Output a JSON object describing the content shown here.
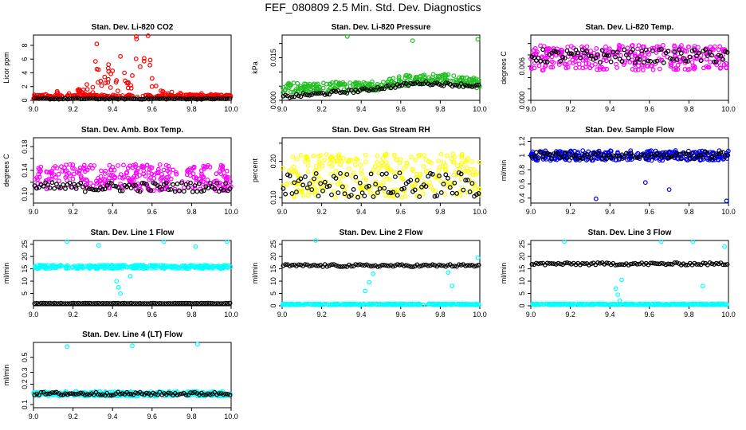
{
  "figure": {
    "title": "FEF_080809  2.5 Min. Std. Dev. Diagnostics",
    "colors": {
      "red": "#ff0000",
      "green": "#1fbf1f",
      "magenta": "#ff00ff",
      "yellow": "#ffff00",
      "blue": "#0000ff",
      "cyan": "#00ffff",
      "black": "#000000"
    }
  },
  "chart_data": [
    {
      "type": "scatter",
      "title": "Stan. Dev. Li-820 CO2",
      "ylabel": "Licor ppm",
      "xlim": [
        9.0,
        10.0
      ],
      "ylim": [
        0,
        9.5
      ],
      "xticks": [
        "9.0",
        "9.2",
        "9.4",
        "9.6",
        "9.8",
        "10.0"
      ],
      "yticks": [
        0,
        2,
        4,
        6,
        8
      ],
      "series": [
        {
          "name": "main",
          "color": "red",
          "base": 0.45,
          "spread": 0.35,
          "x": [
            9.03,
            9.12,
            9.18,
            9.23,
            9.27,
            9.3,
            9.32,
            9.34,
            9.36,
            9.38,
            9.4,
            9.42,
            9.44,
            9.46,
            9.48,
            9.5,
            9.52,
            9.54,
            9.56,
            9.58,
            9.6,
            9.62,
            9.7,
            9.85,
            9.95
          ],
          "y": [
            0.7,
            1.3,
            1.0,
            1.6,
            2.3,
            1.9,
            8.2,
            2.8,
            3.4,
            5.2,
            4.3,
            2.9,
            6.4,
            4.0,
            2.6,
            3.6,
            9.3,
            4.9,
            6.1,
            9.4,
            3.2,
            2.1,
            1.2,
            1.0,
            0.8
          ]
        },
        {
          "name": "ref",
          "color": "black",
          "y": [
            0.15,
            0.3
          ]
        }
      ]
    },
    {
      "type": "scatter",
      "title": "Stan. Dev. Li-820 Pressure",
      "ylabel": "kPa",
      "xlim": [
        9.0,
        10.0
      ],
      "ylim": [
        0,
        0.023
      ],
      "xticks": [
        "9.0",
        "9.2",
        "9.4",
        "9.6",
        "9.8",
        "10.0"
      ],
      "yticks": [
        0.0,
        0.005,
        0.01,
        0.015,
        0.02
      ],
      "ytick_labels": [
        "0.000",
        "",
        "",
        "0.015",
        ""
      ],
      "series": [
        {
          "name": "main",
          "color": "green",
          "x": [
            9.0,
            9.2,
            9.4,
            9.5,
            9.6,
            9.7,
            9.8,
            9.9,
            10.0
          ],
          "y": [
            0.0045,
            0.0045,
            0.0048,
            0.0055,
            0.0068,
            0.0078,
            0.0075,
            0.007,
            0.006
          ],
          "spread": 0.0018,
          "outliers_x": [
            9.33,
            9.66,
            9.99
          ],
          "outliers_y": [
            0.0225,
            0.021,
            0.0215
          ]
        },
        {
          "name": "ref",
          "color": "black",
          "x": [
            9.0,
            9.4,
            9.7,
            10.0
          ],
          "y": [
            0.0012,
            0.0035,
            0.0062,
            0.005
          ]
        }
      ]
    },
    {
      "type": "scatter",
      "title": "Stan. Dev. Li-820 Temp.",
      "ylabel": "degrees C",
      "xlim": [
        9.0,
        10.0
      ],
      "ylim": [
        0,
        0.0115
      ],
      "xticks": [
        "9.0",
        "9.2",
        "9.4",
        "9.6",
        "9.8",
        "10.0"
      ],
      "yticks": [
        0.0,
        0.002,
        0.004,
        0.006,
        0.008,
        0.01
      ],
      "ytick_labels": [
        "0.000",
        "",
        "",
        "0.006",
        "",
        ""
      ],
      "series": [
        {
          "name": "main",
          "color": "magenta",
          "base": 0.0075,
          "spread": 0.0022
        },
        {
          "name": "ref",
          "color": "black",
          "base": 0.0078,
          "spread": 0.0012
        }
      ]
    },
    {
      "type": "scatter",
      "title": "Stan. Dev. Amb. Box Temp.",
      "ylabel": "degrees C",
      "xlim": [
        9.0,
        10.0
      ],
      "ylim": [
        0.085,
        0.195
      ],
      "xticks": [
        "9.0",
        "9.2",
        "9.4",
        "9.6",
        "9.8",
        "10.0"
      ],
      "yticks": [
        0.1,
        0.12,
        0.14,
        0.16,
        0.18
      ],
      "ytick_labels": [
        "0.10",
        "",
        "0.14",
        "",
        "0.18"
      ],
      "series": [
        {
          "name": "main",
          "color": "magenta",
          "base": 0.128,
          "spread": 0.022
        },
        {
          "name": "ref",
          "color": "black",
          "base": 0.112,
          "spread": 0.008
        }
      ]
    },
    {
      "type": "scatter",
      "title": "Stan. Dev. Gas Stream RH",
      "ylabel": "percent",
      "xlim": [
        9.0,
        10.0
      ],
      "ylim": [
        0.085,
        0.265
      ],
      "xticks": [
        "9.0",
        "9.2",
        "9.4",
        "9.6",
        "9.8",
        "10.0"
      ],
      "yticks": [
        0.1,
        0.15,
        0.2,
        0.25
      ],
      "ytick_labels": [
        "0.10",
        "",
        "0.20",
        ""
      ],
      "series": [
        {
          "name": "main",
          "color": "yellow",
          "base": 0.16,
          "spread": 0.06
        },
        {
          "name": "ref",
          "color": "black",
          "base": 0.135,
          "spread": 0.035
        }
      ]
    },
    {
      "type": "scatter",
      "title": "Stan. Dev. Sample Flow",
      "ylabel": "ml/min",
      "xlim": [
        9.0,
        10.0
      ],
      "ylim": [
        0.33,
        1.25
      ],
      "xticks": [
        "9.0",
        "9.2",
        "9.4",
        "9.6",
        "9.8",
        "10.0"
      ],
      "yticks": [
        0.4,
        0.6,
        0.8,
        1.0,
        1.2
      ],
      "series": [
        {
          "name": "main",
          "color": "blue",
          "base": 1.0,
          "spread": 0.07,
          "outliers_x": [
            9.33,
            9.7,
            9.99,
            9.58
          ],
          "outliers_y": [
            0.39,
            0.52,
            0.36,
            0.62
          ]
        },
        {
          "name": "ref",
          "color": "black",
          "base": 1.0,
          "spread": 0.05
        }
      ]
    },
    {
      "type": "scatter",
      "title": "Stan. Dev. Line 1 Flow",
      "ylabel": "ml/min",
      "xlim": [
        9.0,
        10.0
      ],
      "ylim": [
        0,
        26.5
      ],
      "xticks": [
        "9.0",
        "9.2",
        "9.4",
        "9.6",
        "9.8",
        "10.0"
      ],
      "yticks": [
        5,
        10,
        15,
        20,
        25
      ],
      "series": [
        {
          "name": "main",
          "color": "cyan",
          "base": 15.8,
          "spread": 0.7,
          "outliers_x": [
            9.17,
            9.33,
            9.42,
            9.43,
            9.44,
            9.49,
            9.66,
            9.82,
            9.98
          ],
          "outliers_y": [
            26.0,
            24.5,
            10.0,
            7.5,
            5.0,
            12.0,
            26.0,
            24.0,
            26.0
          ]
        },
        {
          "name": "ref",
          "color": "black",
          "base": 1.0,
          "spread": 0.1
        }
      ]
    },
    {
      "type": "scatter",
      "title": "Stan. Dev. Line 2 Flow",
      "ylabel": "ml/min",
      "xlim": [
        9.0,
        10.0
      ],
      "ylim": [
        0,
        26.5
      ],
      "xticks": [
        "9.0",
        "9.2",
        "9.4",
        "9.6",
        "9.8",
        "10.0"
      ],
      "yticks": [
        0,
        5,
        10,
        15,
        20,
        25
      ],
      "series": [
        {
          "name": "main",
          "color": "cyan",
          "base": 0.6,
          "spread": 0.2,
          "outliers_x": [
            9.17,
            9.42,
            9.44,
            9.46,
            9.84,
            9.86,
            9.99
          ],
          "outliers_y": [
            26.5,
            6.0,
            9.5,
            13.0,
            13.5,
            8.0,
            19.5
          ]
        },
        {
          "name": "ref",
          "color": "black",
          "base": 16.3,
          "spread": 0.5
        }
      ]
    },
    {
      "type": "scatter",
      "title": "Stan. Dev. Line 3 Flow",
      "ylabel": "ml/min",
      "xlim": [
        9.0,
        10.0
      ],
      "ylim": [
        0,
        26.5
      ],
      "xticks": [
        "9.0",
        "9.2",
        "9.4",
        "9.6",
        "9.8",
        "10.0"
      ],
      "yticks": [
        0,
        5,
        10,
        15,
        20,
        25
      ],
      "series": [
        {
          "name": "main",
          "color": "cyan",
          "base": 0.6,
          "spread": 0.2,
          "outliers_x": [
            9.17,
            9.43,
            9.44,
            9.45,
            9.46,
            9.66,
            9.82,
            9.87,
            9.98
          ],
          "outliers_y": [
            26.0,
            7.0,
            4.5,
            2.0,
            10.5,
            26.0,
            26.0,
            8.0,
            24.0
          ]
        },
        {
          "name": "ref",
          "color": "black",
          "base": 17.0,
          "spread": 0.5
        }
      ]
    },
    {
      "type": "scatter",
      "title": "Stan. Dev. Line 4 (LT) Flow",
      "ylabel": "ml/min",
      "xlim": [
        9.0,
        10.0
      ],
      "ylim": [
        0.09,
        0.83
      ],
      "xticks": [
        "9.0",
        "9.2",
        "9.4",
        "9.6",
        "9.8",
        "10.0"
      ],
      "yticks": [
        0.1,
        0.2,
        0.3,
        0.5
      ],
      "ylog": true,
      "series": [
        {
          "name": "main",
          "color": "cyan",
          "base": 0.145,
          "spread": 0.012,
          "outliers_x": [
            9.17,
            9.5,
            9.83
          ],
          "outliers_y": [
            0.72,
            0.74,
            0.78
          ]
        },
        {
          "name": "ref",
          "color": "black",
          "base": 0.145,
          "spread": 0.008
        }
      ]
    }
  ]
}
